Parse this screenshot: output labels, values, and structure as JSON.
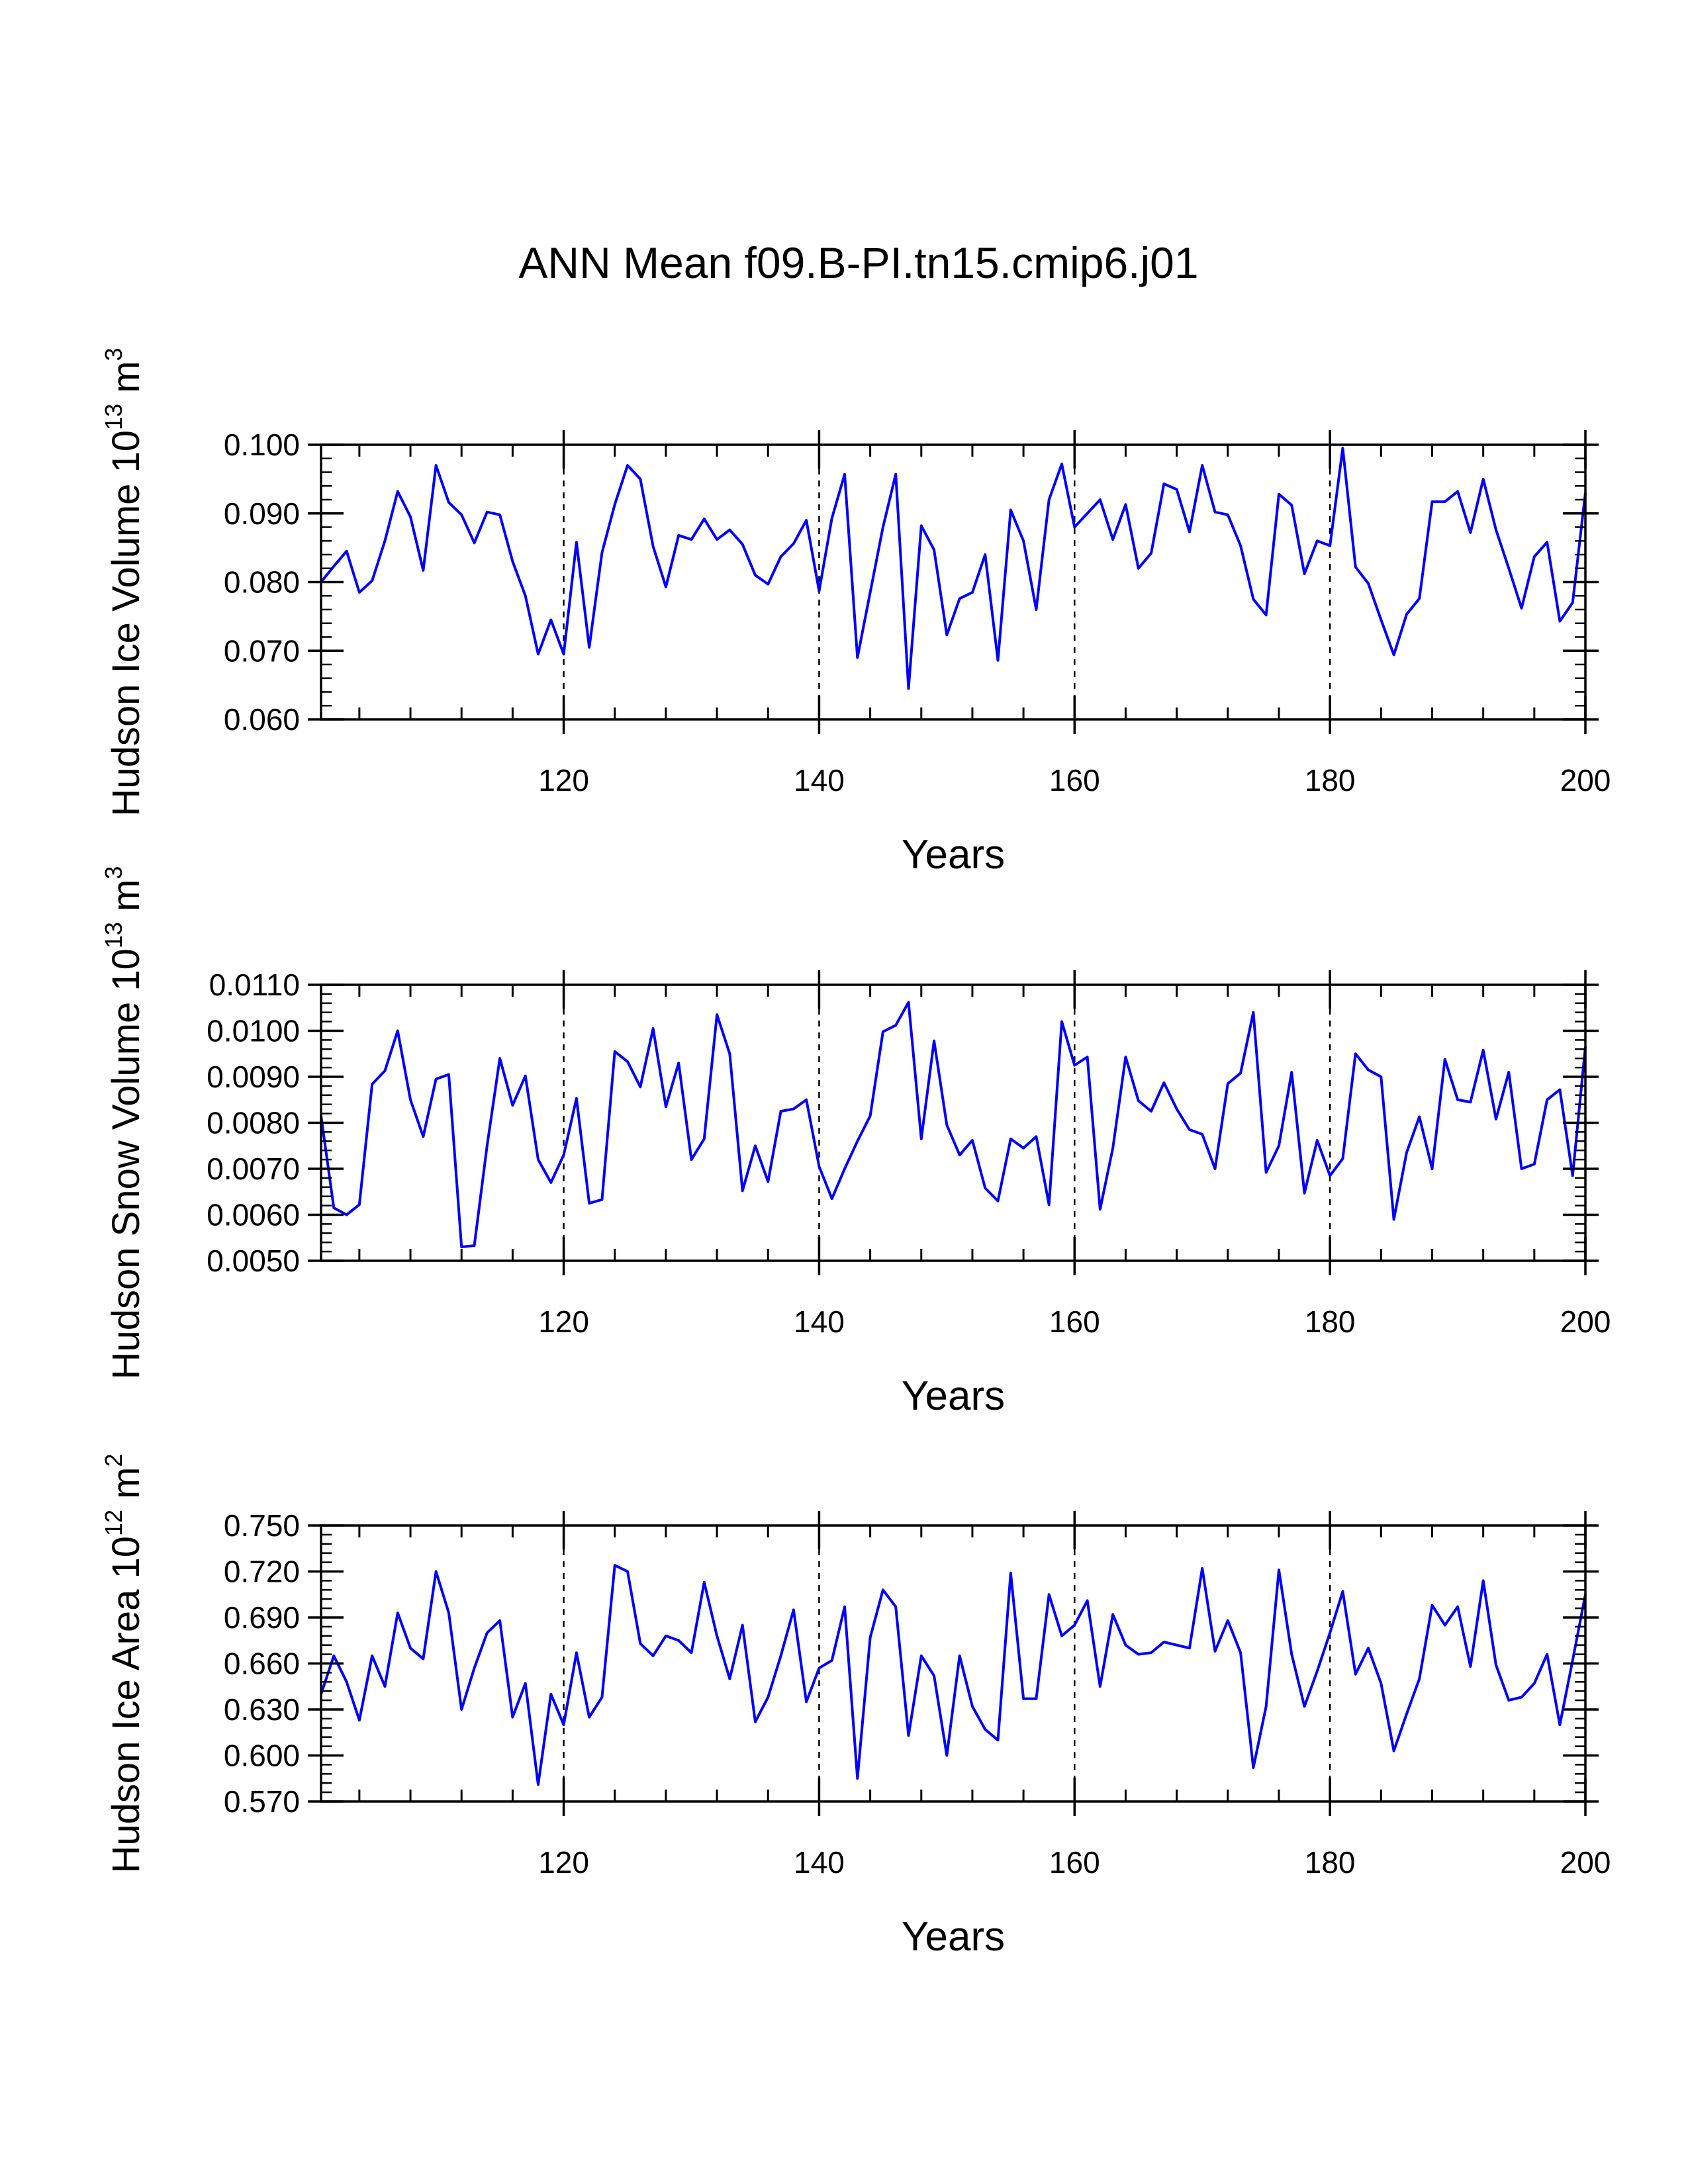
{
  "figure": {
    "title": "ANN Mean f09.B-PI.tn15.cmip6.j01",
    "line_color": "#0000ff"
  },
  "chart_data": [
    {
      "type": "line",
      "ylabel": {
        "main": "Hudson Ice Volume 10",
        "exp": "13",
        "unit": " m",
        "unit_exp": "3"
      },
      "xlabel": "Years",
      "xlim": [
        101,
        200
      ],
      "ylim": [
        0.06,
        0.1
      ],
      "yticks": [
        0.06,
        0.07,
        0.08,
        0.09,
        0.1
      ],
      "ytick_labels": [
        "0.060",
        "0.070",
        "0.080",
        "0.090",
        "0.100"
      ],
      "yminor": 0.002,
      "xticks": [
        120,
        140,
        160,
        180,
        200
      ],
      "xtick_labels": [
        "120",
        "140",
        "160",
        "180",
        "200"
      ],
      "xminor": 4,
      "grid_x": [
        120,
        140,
        160,
        180
      ],
      "series": [
        {
          "name": "Hudson Ice Volume",
          "x_start": 101,
          "values": [
            0.08,
            0.0823,
            0.0845,
            0.0785,
            0.0802,
            0.086,
            0.0932,
            0.0895,
            0.0817,
            0.097,
            0.0916,
            0.0898,
            0.0857,
            0.0902,
            0.0898,
            0.083,
            0.078,
            0.0695,
            0.0745,
            0.0695,
            0.0858,
            0.0705,
            0.0843,
            0.0913,
            0.097,
            0.095,
            0.0852,
            0.0793,
            0.0868,
            0.0862,
            0.0892,
            0.0862,
            0.0876,
            0.0855,
            0.081,
            0.0797,
            0.0837,
            0.0856,
            0.089,
            0.0787,
            0.0893,
            0.0957,
            0.069,
            0.0785,
            0.088,
            0.0957,
            0.0645,
            0.0882,
            0.0847,
            0.0723,
            0.0776,
            0.0785,
            0.084,
            0.0686,
            0.0905,
            0.086,
            0.076,
            0.092,
            0.0972,
            0.088,
            0.09,
            0.092,
            0.0862,
            0.0913,
            0.082,
            0.0842,
            0.0943,
            0.0935,
            0.0873,
            0.097,
            0.0902,
            0.0898,
            0.0853,
            0.0775,
            0.0752,
            0.0928,
            0.0912,
            0.0812,
            0.086,
            0.0853,
            0.0995,
            0.0822,
            0.0798,
            0.0745,
            0.0694,
            0.0753,
            0.0776,
            0.0917,
            0.0917,
            0.0932,
            0.0872,
            0.095,
            0.0876,
            0.082,
            0.0762,
            0.0837,
            0.0858,
            0.0743,
            0.077,
            0.093
          ]
        }
      ]
    },
    {
      "type": "line",
      "ylabel": {
        "main": "Hudson Snow Volume 10",
        "exp": "13",
        "unit": " m",
        "unit_exp": "3"
      },
      "xlabel": "Years",
      "xlim": [
        101,
        200
      ],
      "ylim": [
        0.005,
        0.011
      ],
      "yticks": [
        0.005,
        0.006,
        0.007,
        0.008,
        0.009,
        0.01,
        0.011
      ],
      "ytick_labels": [
        "0.0050",
        "0.0060",
        "0.0070",
        "0.0080",
        "0.0090",
        "0.0100",
        "0.0110"
      ],
      "yminor": 0.0002,
      "xticks": [
        120,
        140,
        160,
        180,
        200
      ],
      "xtick_labels": [
        "120",
        "140",
        "160",
        "180",
        "200"
      ],
      "xminor": 4,
      "grid_x": [
        120,
        140,
        160,
        180
      ],
      "series": [
        {
          "name": "Hudson Snow Volume",
          "x_start": 101,
          "values": [
            0.00815,
            0.00615,
            0.006,
            0.00622,
            0.00884,
            0.00913,
            0.01,
            0.0085,
            0.0077,
            0.00895,
            0.00905,
            0.0053,
            0.00533,
            0.0075,
            0.0094,
            0.00838,
            0.00902,
            0.0072,
            0.0067,
            0.0073,
            0.00853,
            0.00625,
            0.00633,
            0.00955,
            0.00933,
            0.00878,
            0.01005,
            0.00835,
            0.0093,
            0.0072,
            0.00765,
            0.01035,
            0.0095,
            0.00652,
            0.0075,
            0.00672,
            0.00825,
            0.0083,
            0.0085,
            0.00705,
            0.00635,
            0.007,
            0.0076,
            0.00815,
            0.00998,
            0.01012,
            0.01062,
            0.00765,
            0.00978,
            0.00795,
            0.0073,
            0.00762,
            0.00658,
            0.0063,
            0.00765,
            0.00745,
            0.0077,
            0.00622,
            0.0102,
            0.00925,
            0.00943,
            0.00612,
            0.00745,
            0.00943,
            0.00848,
            0.00825,
            0.00887,
            0.0083,
            0.00785,
            0.00775,
            0.007,
            0.00885,
            0.00908,
            0.0104,
            0.00692,
            0.0075,
            0.0091,
            0.00647,
            0.00762,
            0.00685,
            0.00722,
            0.0095,
            0.00915,
            0.009,
            0.0059,
            0.00735,
            0.00813,
            0.007,
            0.00938,
            0.0085,
            0.00845,
            0.00958,
            0.00808,
            0.0091,
            0.007,
            0.0071,
            0.0085,
            0.00872,
            0.00685,
            0.00965
          ]
        }
      ]
    },
    {
      "type": "line",
      "ylabel": {
        "main": "Hudson Ice Area 10",
        "exp": "12",
        "unit": " m",
        "unit_exp": "2"
      },
      "xlabel": "Years",
      "xlim": [
        101,
        200
      ],
      "ylim": [
        0.57,
        0.75
      ],
      "yticks": [
        0.57,
        0.6,
        0.63,
        0.66,
        0.69,
        0.72,
        0.75
      ],
      "ytick_labels": [
        "0.570",
        "0.600",
        "0.630",
        "0.660",
        "0.690",
        "0.720",
        "0.750"
      ],
      "yminor": 0.006,
      "xticks": [
        120,
        140,
        160,
        180,
        200
      ],
      "xtick_labels": [
        "120",
        "140",
        "160",
        "180",
        "200"
      ],
      "xminor": 4,
      "grid_x": [
        120,
        140,
        160,
        180
      ],
      "series": [
        {
          "name": "Hudson Ice Area",
          "x_start": 101,
          "values": [
            0.64,
            0.665,
            0.648,
            0.623,
            0.665,
            0.645,
            0.693,
            0.67,
            0.663,
            0.72,
            0.693,
            0.63,
            0.657,
            0.68,
            0.688,
            0.625,
            0.647,
            0.581,
            0.64,
            0.62,
            0.667,
            0.625,
            0.638,
            0.724,
            0.72,
            0.673,
            0.665,
            0.678,
            0.675,
            0.667,
            0.713,
            0.678,
            0.65,
            0.685,
            0.622,
            0.638,
            0.665,
            0.695,
            0.635,
            0.657,
            0.662,
            0.697,
            0.585,
            0.677,
            0.708,
            0.697,
            0.613,
            0.665,
            0.652,
            0.6,
            0.665,
            0.632,
            0.617,
            0.61,
            0.719,
            0.637,
            0.637,
            0.705,
            0.678,
            0.685,
            0.701,
            0.645,
            0.692,
            0.672,
            0.666,
            0.667,
            0.674,
            0.672,
            0.67,
            0.722,
            0.668,
            0.688,
            0.667,
            0.592,
            0.632,
            0.721,
            0.666,
            0.632,
            0.655,
            0.68,
            0.707,
            0.653,
            0.67,
            0.647,
            0.603,
            0.627,
            0.65,
            0.698,
            0.685,
            0.697,
            0.658,
            0.714,
            0.659,
            0.636,
            0.638,
            0.647,
            0.666,
            0.62,
            0.662,
            0.705
          ]
        }
      ]
    }
  ]
}
